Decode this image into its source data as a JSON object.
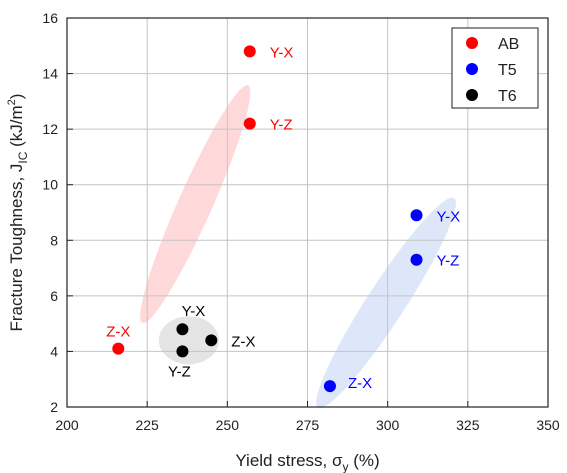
{
  "chart_data": {
    "type": "scatter",
    "xlabel": "Yield stress, σ",
    "xlabel_sub": "y",
    "xlabel_suffix": " (%)",
    "ylabel": "Fracture Toughness, J",
    "ylabel_sub": "IC",
    "ylabel_suffix": " (kJ/m",
    "ylabel_sup": "2",
    "ylabel_end": ")",
    "xlim": [
      200,
      350
    ],
    "ylim": [
      2,
      16
    ],
    "xticks": [
      200,
      225,
      250,
      275,
      300,
      325,
      350
    ],
    "yticks": [
      2,
      4,
      6,
      8,
      10,
      12,
      14,
      16
    ],
    "grid": true,
    "legend_position": "top-right",
    "series": [
      {
        "name": "AB",
        "color": "#ff0000",
        "ellipse_color": "#ff9a9a",
        "points": [
          {
            "x": 257,
            "y": 14.8,
            "label": "Y-X"
          },
          {
            "x": 257,
            "y": 12.2,
            "label": "Y-Z"
          },
          {
            "x": 216,
            "y": 4.1,
            "label": "Z-X"
          }
        ]
      },
      {
        "name": "T5",
        "color": "#0000ff",
        "ellipse_color": "#a9c0ee",
        "points": [
          {
            "x": 309,
            "y": 8.9,
            "label": "Y-X"
          },
          {
            "x": 309,
            "y": 7.3,
            "label": "Y-Z"
          },
          {
            "x": 282,
            "y": 2.75,
            "label": "Z-X"
          }
        ]
      },
      {
        "name": "T6",
        "color": "#000000",
        "ellipse_color": "#b8b8b8",
        "points": [
          {
            "x": 236,
            "y": 4.8,
            "label": "Y-X"
          },
          {
            "x": 236,
            "y": 4.0,
            "label": "Y-Z"
          },
          {
            "x": 245,
            "y": 4.4,
            "label": "Z-X"
          }
        ]
      }
    ]
  }
}
